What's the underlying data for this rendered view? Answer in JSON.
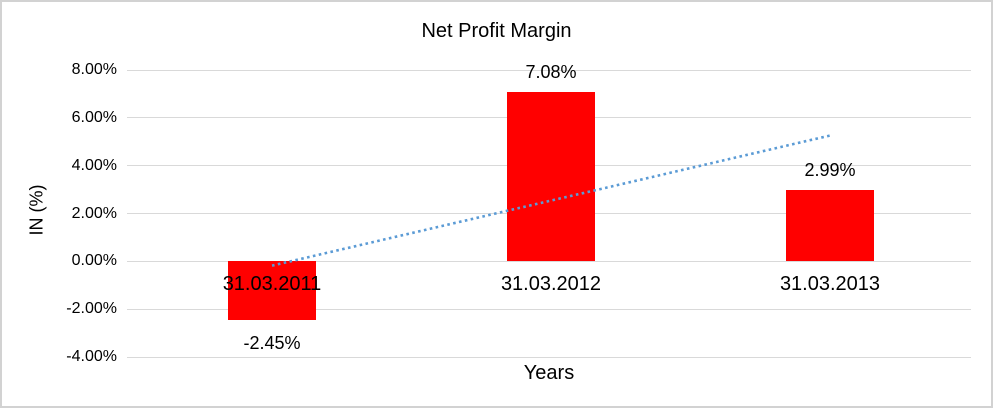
{
  "chart_data": {
    "type": "bar",
    "title": "Net Profit Margin",
    "categories": [
      "31.03.2011",
      "31.03.2012",
      "31.03.2013"
    ],
    "values": [
      -2.45,
      7.08,
      2.99
    ],
    "data_labels": [
      "-2.45%",
      "7.08%",
      "2.99%"
    ],
    "xlabel": "Years",
    "ylabel": "IN (%)",
    "ylim": [
      -4,
      8
    ],
    "y_ticks": [
      {
        "value": 8,
        "label": "8.00%"
      },
      {
        "value": 6,
        "label": "6.00%"
      },
      {
        "value": 4,
        "label": "4.00%"
      },
      {
        "value": 2,
        "label": "2.00%"
      },
      {
        "value": 0,
        "label": "0.00%"
      },
      {
        "value": -2,
        "label": "-2.00%"
      },
      {
        "value": -4,
        "label": "-4.00%"
      }
    ],
    "grid": true,
    "legend": false,
    "bar_color": "#FF0000",
    "gridline_color": "#D9D9D9",
    "text_color": "#000000",
    "trendline": {
      "type": "linear",
      "style": "dotted",
      "color": "#5B9BD5",
      "start_value": -0.18,
      "end_value": 5.26
    }
  }
}
